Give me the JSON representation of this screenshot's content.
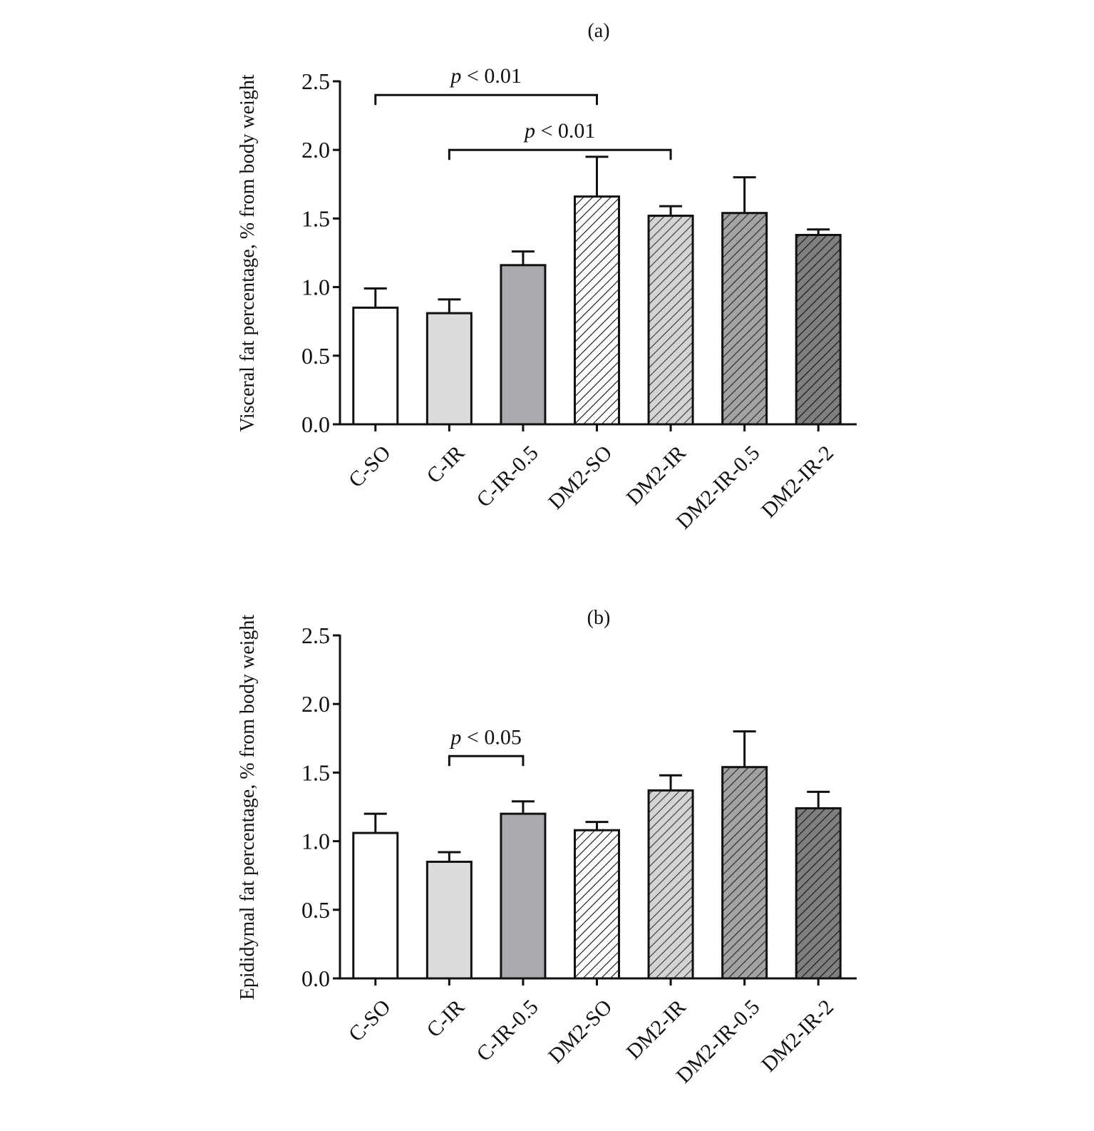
{
  "chart_data": [
    {
      "type": "bar",
      "panel_label": "(a)",
      "ylabel": "Visceral fat percentage, % from body weight",
      "xlabel": "",
      "ylim": [
        0,
        2.5
      ],
      "yticks": [
        "0.0",
        "0.5",
        "1.0",
        "1.5",
        "2.0",
        "2.5"
      ],
      "ytick_values": [
        0,
        0.5,
        1.0,
        1.5,
        2.0,
        2.5
      ],
      "categories": [
        "C-SO",
        "C-IR",
        "C-IR-0.5",
        "DM2-SO",
        "DM2-IR",
        "DM2-IR-0.5",
        "DM2-IR-2"
      ],
      "values": [
        0.85,
        0.81,
        1.16,
        1.66,
        1.52,
        1.54,
        1.38
      ],
      "errors": [
        0.14,
        0.1,
        0.1,
        0.29,
        0.07,
        0.26,
        0.04
      ],
      "significance": [
        {
          "from": 0,
          "to": 3,
          "level": 2.4,
          "p_italic": "p",
          "label": " < 0.01"
        },
        {
          "from": 1,
          "to": 4,
          "level": 2.0,
          "p_italic": "p",
          "label": " < 0.01"
        }
      ]
    },
    {
      "type": "bar",
      "panel_label": "(b)",
      "ylabel": "Epididymal fat percentage, % from body weight",
      "xlabel": "",
      "ylim": [
        0,
        2.5
      ],
      "yticks": [
        "0.0",
        "0.5",
        "1.0",
        "1.5",
        "2.0",
        "2.5"
      ],
      "ytick_values": [
        0,
        0.5,
        1.0,
        1.5,
        2.0,
        2.5
      ],
      "categories": [
        "C-SO",
        "C-IR",
        "C-IR-0.5",
        "DM2-SO",
        "DM2-IR",
        "DM2-IR-0.5",
        "DM2-IR-2"
      ],
      "values": [
        1.06,
        0.85,
        1.2,
        1.08,
        1.37,
        1.54,
        1.24
      ],
      "errors": [
        0.14,
        0.07,
        0.09,
        0.06,
        0.11,
        0.26,
        0.12
      ],
      "significance": [
        {
          "from": 1,
          "to": 2,
          "level": 1.62,
          "p_italic": "p",
          "label": " < 0.05"
        }
      ]
    }
  ],
  "bar_styles": [
    {
      "fill": "#ffffff",
      "hatch": false,
      "hatch_color": ""
    },
    {
      "fill": "#dcdcdc",
      "hatch": false,
      "hatch_color": ""
    },
    {
      "fill": "#a9aaad",
      "hatch": false,
      "hatch_color": ""
    },
    {
      "fill": "#ffffff",
      "hatch": true,
      "hatch_color": "#111111"
    },
    {
      "fill": "#d4d4d4",
      "hatch": true,
      "hatch_color": "#333333"
    },
    {
      "fill": "#a3a3a6",
      "hatch": true,
      "hatch_color": "#222222"
    },
    {
      "fill": "#7f7f82",
      "hatch": true,
      "hatch_color": "#111111"
    }
  ]
}
